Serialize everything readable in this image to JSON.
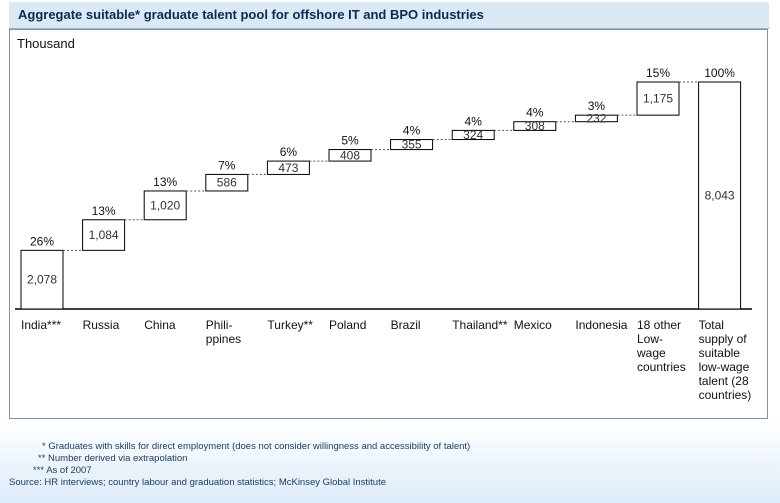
{
  "title": "Aggregate suitable* graduate talent pool for offshore IT and BPO industries",
  "chart_data": {
    "type": "waterfall",
    "title": "Aggregate suitable* graduate talent pool for offshore IT and BPO industries",
    "unit_label": "Thousand",
    "categories": [
      [
        "India***"
      ],
      [
        "Russia"
      ],
      [
        "China"
      ],
      [
        "Phili-",
        "ppines"
      ],
      [
        "Turkey**"
      ],
      [
        "Poland"
      ],
      [
        "Brazil"
      ],
      [
        "Thailand**"
      ],
      [
        "Mexico"
      ],
      [
        "Indonesia"
      ],
      [
        "18 other",
        "Low-",
        "wage",
        "countries"
      ],
      [
        "Total",
        "supply of",
        "suitable",
        "low-wage",
        "talent (28",
        "countries)"
      ]
    ],
    "values": [
      2078,
      1084,
      1020,
      586,
      473,
      408,
      355,
      324,
      308,
      232,
      1175,
      8043
    ],
    "value_labels": [
      "2,078",
      "1,084",
      "1,020",
      "586",
      "473",
      "408",
      "355",
      "324",
      "308",
      "232",
      "1,175",
      "8,043"
    ],
    "shares": [
      "26%",
      "13%",
      "13%",
      "7%",
      "6%",
      "5%",
      "4%",
      "4%",
      "4%",
      "3%",
      "15%",
      "100%"
    ],
    "total_index": 11,
    "ylim": [
      0,
      8043
    ]
  },
  "footnotes": [
    "* Graduates with skills for direct employment (does not consider willingness and accessibility of talent)",
    "** Number derived via extrapolation",
    "*** As of 2007",
    "Source: HR interviews; country labour and graduation statistics; McKinsey Global Institute"
  ],
  "colors": {
    "accent": "#0b2a53",
    "frame": "#7e95aa",
    "background_tint": "#dcebf8"
  }
}
